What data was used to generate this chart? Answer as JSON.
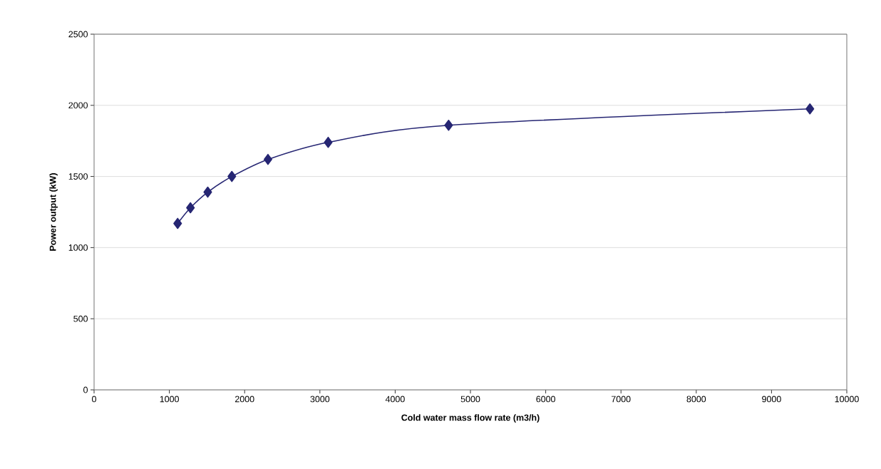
{
  "chart_data": {
    "type": "line",
    "xlabel": "Cold water mass flow rate (m3/h)",
    "ylabel": "Power output (kW)",
    "x": [
      1110,
      1280,
      1510,
      1830,
      2310,
      3110,
      4710,
      9510
    ],
    "series": [
      {
        "color": "#262673",
        "values": [
          1170,
          1280,
          1390,
          1500,
          1620,
          1740,
          1860,
          1975
        ]
      }
    ],
    "xlim": [
      0,
      10000
    ],
    "xticks": [
      0,
      1000,
      2000,
      3000,
      4000,
      5000,
      6000,
      7000,
      8000,
      9000,
      10000
    ],
    "ylim": [
      0,
      2500
    ],
    "yticks": [
      0,
      500,
      1000,
      1500,
      2000,
      2500
    ],
    "grid": "y",
    "marker": "diamond",
    "line_style": "solid"
  }
}
